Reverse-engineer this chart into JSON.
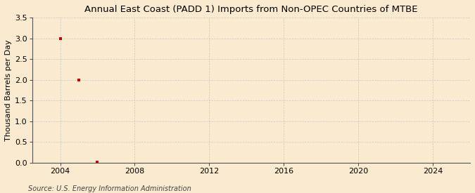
{
  "title": "Annual East Coast (PADD 1) Imports from Non-OPEC Countries of MTBE",
  "ylabel": "Thousand Barrels per Day",
  "source": "Source: U.S. Energy Information Administration",
  "background_color": "#faebd0",
  "data_x": [
    2004,
    2005,
    2006
  ],
  "data_y": [
    3.0,
    2.0,
    0.02
  ],
  "marker_color": "#cc0000",
  "marker_size": 3.5,
  "xlim": [
    2002.5,
    2026
  ],
  "ylim": [
    0.0,
    3.5
  ],
  "xticks": [
    2004,
    2008,
    2012,
    2016,
    2020,
    2024
  ],
  "yticks": [
    0.0,
    0.5,
    1.0,
    1.5,
    2.0,
    2.5,
    3.0,
    3.5
  ],
  "grid_color": "#c8c8c8",
  "title_fontsize": 9.5,
  "label_fontsize": 8,
  "tick_fontsize": 8,
  "source_fontsize": 7
}
